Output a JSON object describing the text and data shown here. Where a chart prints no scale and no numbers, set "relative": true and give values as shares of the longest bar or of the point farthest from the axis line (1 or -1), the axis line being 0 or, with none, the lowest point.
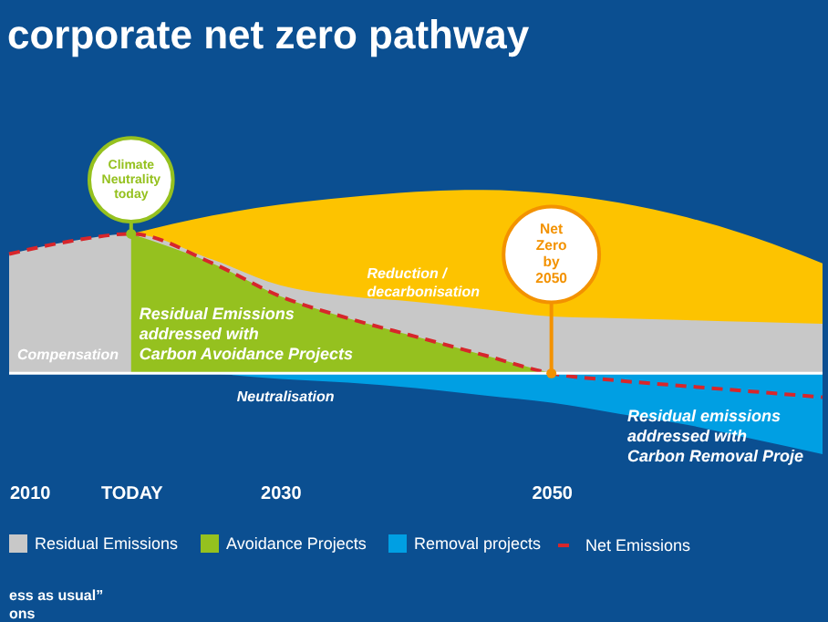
{
  "chart_data": {
    "type": "area",
    "title": "corporate net zero pathway",
    "relative": true,
    "legend": "bottom",
    "line_style": "dashed",
    "marker": "none",
    "x": [
      2010,
      2014.5,
      2019,
      2025,
      2030,
      2035,
      2040,
      2045,
      2050,
      2055,
      2060,
      2065,
      2070
    ],
    "xlim": [
      2010,
      2070
    ],
    "xticks": [
      2010,
      {
        "value": 2019,
        "label": "TODAY"
      },
      2030,
      2050,
      {
        "value": 2070,
        "label": null
      }
    ],
    "series": [
      {
        "color": "#fdc300",
        "values": [
          null,
          null,
          0.76,
          0.86,
          0.92,
          0.96,
          0.99,
          1,
          0.98,
          0.93,
          0.85,
          0.74,
          0.6
        ]
      },
      {
        "name": "Residual Emissions",
        "color": "#c8c8c8",
        "values": [
          0.65,
          0.72,
          0.76,
          0.62,
          0.48,
          0.42,
          0.39,
          0.35,
          0.31,
          0.3,
          0.29,
          0.28,
          0.27
        ]
      },
      {
        "name": "Avoidance Projects",
        "color": "#95c11f",
        "values": [
          null,
          null,
          0.76,
          0.6,
          0.42,
          0.3,
          0.2,
          0.1,
          0,
          null,
          null,
          null,
          null
        ]
      },
      {
        "name": "Removal projects",
        "color": "#009fe3",
        "values": [
          null,
          null,
          null,
          0,
          -0.03,
          -0.05,
          -0.08,
          -0.12,
          -0.16,
          -0.22,
          -0.28,
          -0.36,
          -0.44
        ]
      },
      {
        "name": "Net Emissions",
        "type": "line",
        "color": "#d7262b",
        "values": [
          0.65,
          0.72,
          0.76,
          0.6,
          0.42,
          0.3,
          0.2,
          0.1,
          0,
          -0.04,
          -0.07,
          -0.1,
          -0.13
        ]
      }
    ],
    "annotations": [
      {
        "text": "Climate\nNeutrality\ntoday",
        "x": 2019,
        "y": 0.76
      },
      {
        "text": "Net\nZero\nby\n2050",
        "x": 2050,
        "y": 0
      },
      "Reduction /\ndecarbonisation",
      "Compensation",
      "Residual Emissions\naddressed with\nCarbon Avoidance Projects",
      "Neutralisation",
      "Residual emissions\naddressed with\nCarbon Removal Proje",
      "ess as usual”\nons"
    ]
  }
}
